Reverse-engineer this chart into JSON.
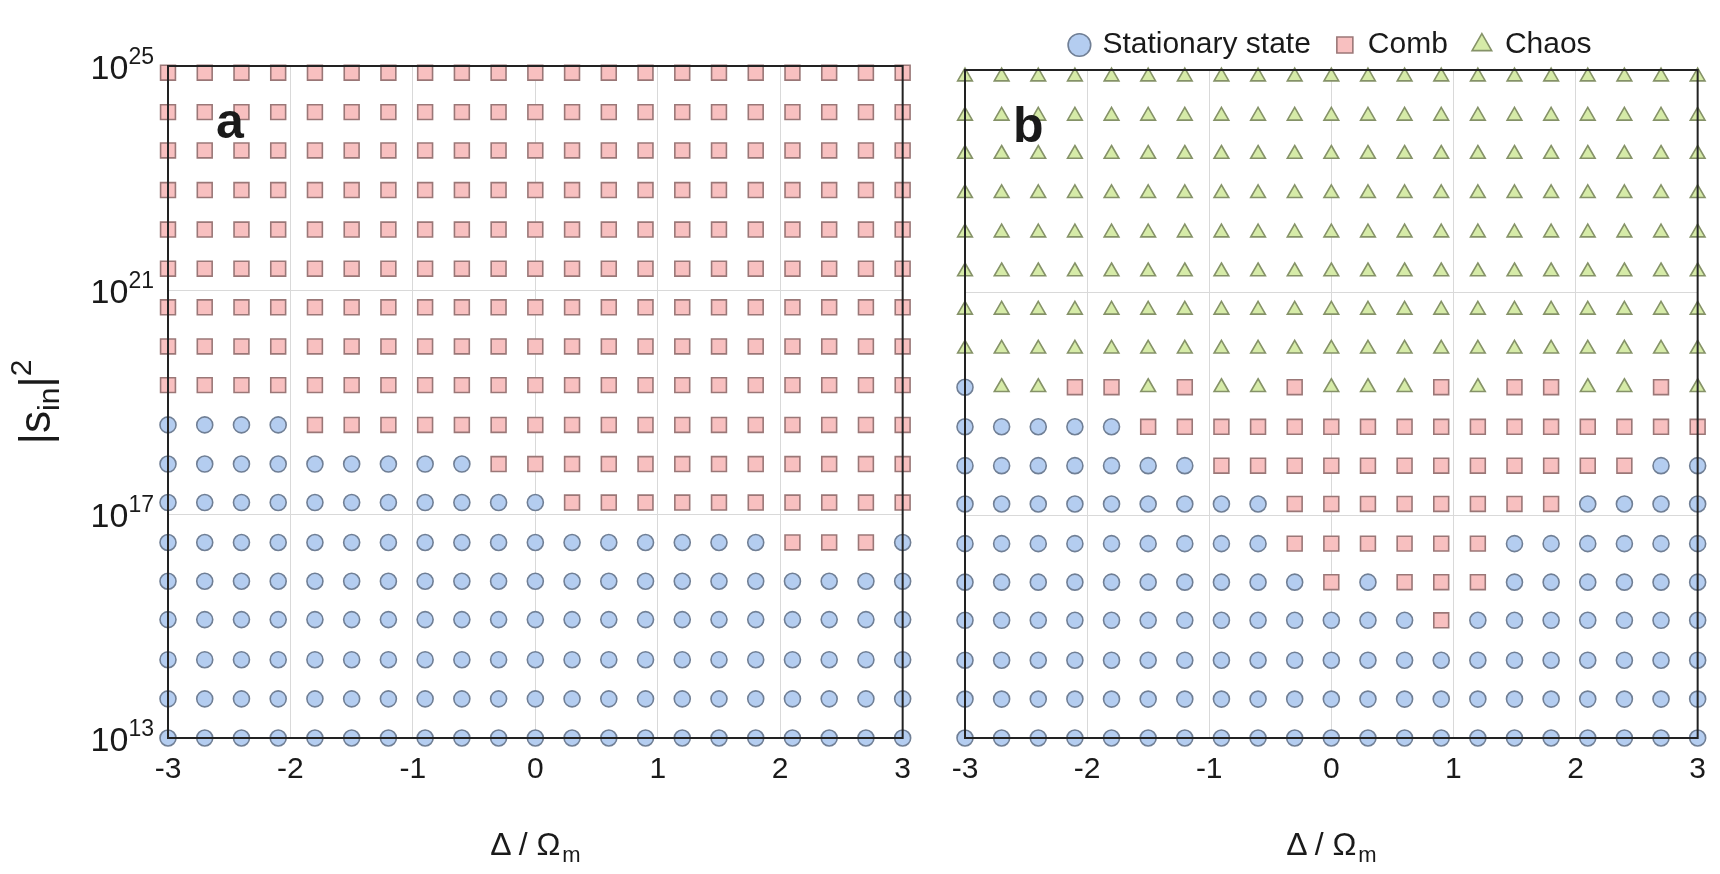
{
  "chart_data": [
    {
      "type": "scatter",
      "xlabel": "Δ / Ω$_{m}$",
      "ylabel": "|s$_{in}$|$^{2}$",
      "annotations": [
        "a"
      ],
      "log": "y",
      "grid": true,
      "legend": false,
      "xlim": [
        -3,
        3
      ],
      "xticks": [
        -3,
        -2,
        -1,
        0,
        1,
        2,
        3
      ],
      "ylim": [
        10000000000000.0,
        1e+25
      ],
      "yticks": [
        {
          "value": 10000000000000.0,
          "label": "10$^{13}$"
        },
        {
          "value": 1e+17,
          "label": "10$^{17}$"
        },
        {
          "value": 1e+21,
          "label": "10$^{21}$"
        },
        {
          "value": 1e+25,
          "label": "10$^{25}$"
        }
      ],
      "series": [
        {
          "color": "#b4cdf0",
          "marker": "circle",
          "x": [
            -3,
            -2.7,
            -2.4,
            -2.1,
            -1.8,
            -1.5,
            -1.2,
            -0.9,
            -0.6,
            -0.3,
            0,
            0.3,
            0.6,
            0.9,
            1.2,
            1.5,
            1.8,
            2.1,
            2.4,
            2.7,
            3,
            -3,
            -2.7,
            -2.4,
            -2.1,
            -1.8,
            -1.5,
            -1.2,
            -0.9,
            -0.6,
            -0.3,
            0,
            0.3,
            0.6,
            0.9,
            1.2,
            1.5,
            1.8,
            2.1,
            2.4,
            2.7,
            3,
            -3,
            -2.7,
            -2.4,
            -2.1,
            -1.8,
            -1.5,
            -1.2,
            -0.9,
            -0.6,
            -0.3,
            0,
            0.3,
            0.6,
            0.9,
            1.2,
            1.5,
            1.8,
            2.1,
            2.4,
            2.7,
            3,
            -3,
            -2.7,
            -2.4,
            -2.1,
            -1.8,
            -1.5,
            -1.2,
            -0.9,
            -0.6,
            -0.3,
            0,
            0.3,
            0.6,
            0.9,
            1.2,
            1.5,
            1.8,
            2.1,
            2.4,
            2.7,
            3,
            -3,
            -2.7,
            -2.4,
            -2.1,
            -1.8,
            -1.5,
            -1.2,
            -0.9,
            -0.6,
            -0.3,
            0,
            0.3,
            0.6,
            0.9,
            1.2,
            1.5,
            1.8,
            2.1,
            2.4,
            2.7,
            3,
            -3,
            -2.7,
            -2.4,
            -2.1,
            -1.8,
            -1.5,
            -1.2,
            -0.9,
            -0.6,
            -0.3,
            0,
            0.3,
            0.6,
            0.9,
            1.2,
            1.5,
            1.8,
            3,
            -3,
            -2.7,
            -2.4,
            -2.1,
            -1.8,
            -1.5,
            -1.2,
            -0.9,
            -0.6,
            -0.3,
            0,
            -3,
            -2.7,
            -2.4,
            -2.1,
            -1.8,
            -1.5,
            -1.2,
            -0.9,
            -0.6,
            -3,
            -2.7,
            -2.4,
            -2.1
          ],
          "values": [
            10000000000000.0,
            10000000000000.0,
            10000000000000.0,
            10000000000000.0,
            10000000000000.0,
            10000000000000.0,
            10000000000000.0,
            10000000000000.0,
            10000000000000.0,
            10000000000000.0,
            10000000000000.0,
            10000000000000.0,
            10000000000000.0,
            10000000000000.0,
            10000000000000.0,
            10000000000000.0,
            10000000000000.0,
            10000000000000.0,
            10000000000000.0,
            10000000000000.0,
            10000000000000.0,
            50000000000000.0,
            50000000000000.0,
            50000000000000.0,
            50000000000000.0,
            50000000000000.0,
            50000000000000.0,
            50000000000000.0,
            50000000000000.0,
            50000000000000.0,
            50000000000000.0,
            50000000000000.0,
            50000000000000.0,
            50000000000000.0,
            50000000000000.0,
            50000000000000.0,
            50000000000000.0,
            50000000000000.0,
            50000000000000.0,
            50000000000000.0,
            50000000000000.0,
            50000000000000.0,
            250000000000000.0,
            250000000000000.0,
            250000000000000.0,
            250000000000000.0,
            250000000000000.0,
            250000000000000.0,
            250000000000000.0,
            250000000000000.0,
            250000000000000.0,
            250000000000000.0,
            250000000000000.0,
            250000000000000.0,
            250000000000000.0,
            250000000000000.0,
            250000000000000.0,
            250000000000000.0,
            250000000000000.0,
            250000000000000.0,
            250000000000000.0,
            250000000000000.0,
            250000000000000.0,
            1300000000000000.0,
            1300000000000000.0,
            1300000000000000.0,
            1300000000000000.0,
            1300000000000000.0,
            1300000000000000.0,
            1300000000000000.0,
            1300000000000000.0,
            1300000000000000.0,
            1300000000000000.0,
            1300000000000000.0,
            1300000000000000.0,
            1300000000000000.0,
            1300000000000000.0,
            1300000000000000.0,
            1300000000000000.0,
            1300000000000000.0,
            1300000000000000.0,
            1300000000000000.0,
            1300000000000000.0,
            1300000000000000.0,
            6300000000000000.0,
            6300000000000000.0,
            6300000000000000.0,
            6300000000000000.0,
            6300000000000000.0,
            6300000000000000.0,
            6300000000000000.0,
            6300000000000000.0,
            6300000000000000.0,
            6300000000000000.0,
            6300000000000000.0,
            6300000000000000.0,
            6300000000000000.0,
            6300000000000000.0,
            6300000000000000.0,
            6300000000000000.0,
            6300000000000000.0,
            6300000000000000.0,
            6300000000000000.0,
            6300000000000000.0,
            6300000000000000.0,
            3.1e+16,
            3.1e+16,
            3.1e+16,
            3.1e+16,
            3.1e+16,
            3.1e+16,
            3.1e+16,
            3.1e+16,
            3.1e+16,
            3.1e+16,
            3.1e+16,
            3.1e+16,
            3.1e+16,
            3.1e+16,
            3.1e+16,
            3.1e+16,
            3.1e+16,
            3.1e+16,
            1.6e+17,
            1.6e+17,
            1.6e+17,
            1.6e+17,
            1.6e+17,
            1.6e+17,
            1.6e+17,
            1.6e+17,
            1.6e+17,
            1.6e+17,
            1.6e+17,
            7.8e+17,
            7.8e+17,
            7.8e+17,
            7.8e+17,
            7.8e+17,
            7.8e+17,
            7.8e+17,
            7.8e+17,
            7.8e+17,
            3.9e+18,
            3.9e+18,
            3.9e+18,
            3.9e+18
          ]
        },
        {
          "color": "#f8c0c0",
          "marker": "square",
          "x": [
            2.1,
            2.4,
            2.7,
            0.3,
            0.6,
            0.9,
            1.2,
            1.5,
            1.8,
            2.1,
            2.4,
            2.7,
            3,
            -0.3,
            0,
            0.3,
            0.6,
            0.9,
            1.2,
            1.5,
            1.8,
            2.1,
            2.4,
            2.7,
            3,
            -1.8,
            -1.5,
            -1.2,
            -0.9,
            -0.6,
            -0.3,
            0,
            0.3,
            0.6,
            0.9,
            1.2,
            1.5,
            1.8,
            2.1,
            2.4,
            2.7,
            3,
            -3,
            -2.7,
            -2.4,
            -2.1,
            -1.8,
            -1.5,
            -1.2,
            -0.9,
            -0.6,
            -0.3,
            0,
            0.3,
            0.6,
            0.9,
            1.2,
            1.5,
            1.8,
            2.1,
            2.4,
            2.7,
            3,
            -3,
            -2.7,
            -2.4,
            -2.1,
            -1.8,
            -1.5,
            -1.2,
            -0.9,
            -0.6,
            -0.3,
            0,
            0.3,
            0.6,
            0.9,
            1.2,
            1.5,
            1.8,
            2.1,
            2.4,
            2.7,
            3,
            -3,
            -2.7,
            -2.4,
            -2.1,
            -1.8,
            -1.5,
            -1.2,
            -0.9,
            -0.6,
            -0.3,
            0,
            0.3,
            0.6,
            0.9,
            1.2,
            1.5,
            1.8,
            2.1,
            2.4,
            2.7,
            3,
            -3,
            -2.7,
            -2.4,
            -2.1,
            -1.8,
            -1.5,
            -1.2,
            -0.9,
            -0.6,
            -0.3,
            0,
            0.3,
            0.6,
            0.9,
            1.2,
            1.5,
            1.8,
            2.1,
            2.4,
            2.7,
            3,
            -3,
            -2.7,
            -2.4,
            -2.1,
            -1.8,
            -1.5,
            -1.2,
            -0.9,
            -0.6,
            -0.3,
            0,
            0.3,
            0.6,
            0.9,
            1.2,
            1.5,
            1.8,
            2.1,
            2.4,
            2.7,
            3,
            -3,
            -2.7,
            -2.4,
            -2.1,
            -1.8,
            -1.5,
            -1.2,
            -0.9,
            -0.6,
            -0.3,
            0,
            0.3,
            0.6,
            0.9,
            1.2,
            1.5,
            1.8,
            2.1,
            2.4,
            2.7,
            3,
            -3,
            -2.7,
            -2.4,
            -2.1,
            -1.8,
            -1.5,
            -1.2,
            -0.9,
            -0.6,
            -0.3,
            0,
            0.3,
            0.6,
            0.9,
            1.2,
            1.5,
            1.8,
            2.1,
            2.4,
            2.7,
            3,
            -3,
            -2.7,
            -2.4,
            -2.1,
            -1.8,
            -1.5,
            -1.2,
            -0.9,
            -0.6,
            -0.3,
            0,
            0.3,
            0.6,
            0.9,
            1.2,
            1.5,
            1.8,
            2.1,
            2.4,
            2.7,
            3,
            -3,
            -2.7,
            -2.4,
            -2.1,
            -1.8,
            -1.5,
            -1.2,
            -0.9,
            -0.6,
            -0.3,
            0,
            0.3,
            0.6,
            0.9,
            1.2,
            1.5,
            1.8,
            2.1,
            2.4,
            2.7,
            3
          ],
          "values": [
            3.1e+16,
            3.1e+16,
            3.1e+16,
            1.6e+17,
            1.6e+17,
            1.6e+17,
            1.6e+17,
            1.6e+17,
            1.6e+17,
            1.6e+17,
            1.6e+17,
            1.6e+17,
            1.6e+17,
            7.8e+17,
            7.8e+17,
            7.8e+17,
            7.8e+17,
            7.8e+17,
            7.8e+17,
            7.8e+17,
            7.8e+17,
            7.8e+17,
            7.8e+17,
            7.8e+17,
            7.8e+17,
            3.9e+18,
            3.9e+18,
            3.9e+18,
            3.9e+18,
            3.9e+18,
            3.9e+18,
            3.9e+18,
            3.9e+18,
            3.9e+18,
            3.9e+18,
            3.9e+18,
            3.9e+18,
            3.9e+18,
            3.9e+18,
            3.9e+18,
            3.9e+18,
            3.9e+18,
            2e+19,
            2e+19,
            2e+19,
            2e+19,
            2e+19,
            2e+19,
            2e+19,
            2e+19,
            2e+19,
            2e+19,
            2e+19,
            2e+19,
            2e+19,
            2e+19,
            2e+19,
            2e+19,
            2e+19,
            2e+19,
            2e+19,
            2e+19,
            2e+19,
            9.8e+19,
            9.8e+19,
            9.8e+19,
            9.8e+19,
            9.8e+19,
            9.8e+19,
            9.8e+19,
            9.8e+19,
            9.8e+19,
            9.8e+19,
            9.8e+19,
            9.8e+19,
            9.8e+19,
            9.8e+19,
            9.8e+19,
            9.8e+19,
            9.8e+19,
            9.8e+19,
            9.8e+19,
            9.8e+19,
            9.8e+19,
            4.9e+20,
            4.9e+20,
            4.9e+20,
            4.9e+20,
            4.9e+20,
            4.9e+20,
            4.9e+20,
            4.9e+20,
            4.9e+20,
            4.9e+20,
            4.9e+20,
            4.9e+20,
            4.9e+20,
            4.9e+20,
            4.9e+20,
            4.9e+20,
            4.9e+20,
            4.9e+20,
            4.9e+20,
            4.9e+20,
            4.9e+20,
            2.4e+21,
            2.4e+21,
            2.4e+21,
            2.4e+21,
            2.4e+21,
            2.4e+21,
            2.4e+21,
            2.4e+21,
            2.4e+21,
            2.4e+21,
            2.4e+21,
            2.4e+21,
            2.4e+21,
            2.4e+21,
            2.4e+21,
            2.4e+21,
            2.4e+21,
            2.4e+21,
            2.4e+21,
            2.4e+21,
            2.4e+21,
            1.2e+22,
            1.2e+22,
            1.2e+22,
            1.2e+22,
            1.2e+22,
            1.2e+22,
            1.2e+22,
            1.2e+22,
            1.2e+22,
            1.2e+22,
            1.2e+22,
            1.2e+22,
            1.2e+22,
            1.2e+22,
            1.2e+22,
            1.2e+22,
            1.2e+22,
            1.2e+22,
            1.2e+22,
            1.2e+22,
            1.2e+22,
            6.1e+22,
            6.1e+22,
            6.1e+22,
            6.1e+22,
            6.1e+22,
            6.1e+22,
            6.1e+22,
            6.1e+22,
            6.1e+22,
            6.1e+22,
            6.1e+22,
            6.1e+22,
            6.1e+22,
            6.1e+22,
            6.1e+22,
            6.1e+22,
            6.1e+22,
            6.1e+22,
            6.1e+22,
            6.1e+22,
            6.1e+22,
            3.1e+23,
            3.1e+23,
            3.1e+23,
            3.1e+23,
            3.1e+23,
            3.1e+23,
            3.1e+23,
            3.1e+23,
            3.1e+23,
            3.1e+23,
            3.1e+23,
            3.1e+23,
            3.1e+23,
            3.1e+23,
            3.1e+23,
            3.1e+23,
            3.1e+23,
            3.1e+23,
            3.1e+23,
            3.1e+23,
            3.1e+23,
            1.5e+24,
            1.5e+24,
            1.5e+24,
            1.5e+24,
            1.5e+24,
            1.5e+24,
            1.5e+24,
            1.5e+24,
            1.5e+24,
            1.5e+24,
            1.5e+24,
            1.5e+24,
            1.5e+24,
            1.5e+24,
            1.5e+24,
            1.5e+24,
            1.5e+24,
            1.5e+24,
            1.5e+24,
            1.5e+24,
            1.5e+24,
            7.6e+24,
            7.6e+24,
            7.6e+24,
            7.6e+24,
            7.6e+24,
            7.6e+24,
            7.6e+24,
            7.6e+24,
            7.6e+24,
            7.6e+24,
            7.6e+24,
            7.6e+24,
            7.6e+24,
            7.6e+24,
            7.6e+24,
            7.6e+24,
            7.6e+24,
            7.6e+24,
            7.6e+24,
            7.6e+24,
            7.6e+24
          ]
        }
      ]
    },
    {
      "type": "scatter",
      "xlabel": "Δ / Ω$_{m}$",
      "annotations": [
        "b"
      ],
      "log": "y",
      "grid": true,
      "legend": "top",
      "tick_labels": "x",
      "xlim": [
        -3,
        3
      ],
      "xticks": [
        -3,
        -2,
        -1,
        0,
        1,
        2,
        3
      ],
      "ylim": [
        10000000000000.0,
        1e+25
      ],
      "yticks": [
        {
          "value": 10000000000000.0,
          "label": null
        },
        {
          "value": 1e+17,
          "label": null
        },
        {
          "value": 1e+21,
          "label": null
        },
        {
          "value": 1e+25,
          "label": null
        }
      ],
      "series": [
        {
          "name": "Stationary state",
          "color": "#b4cdf0",
          "marker": "circle",
          "x": [
            -3,
            -2.7,
            -2.4,
            -2.1,
            -1.8,
            -1.5,
            -1.2,
            -0.9,
            -0.6,
            -0.3,
            0,
            0.3,
            0.6,
            0.9,
            1.2,
            1.5,
            1.8,
            2.1,
            2.4,
            2.7,
            3,
            -3,
            -2.7,
            -2.4,
            -2.1,
            -1.8,
            -1.5,
            -1.2,
            -0.9,
            -0.6,
            -0.3,
            0,
            0.3,
            0.6,
            0.9,
            1.2,
            1.5,
            1.8,
            2.1,
            2.4,
            2.7,
            3,
            -3,
            -2.7,
            -2.4,
            -2.1,
            -1.8,
            -1.5,
            -1.2,
            -0.9,
            -0.6,
            -0.3,
            0,
            0.3,
            0.6,
            0.9,
            1.2,
            1.5,
            1.8,
            2.1,
            2.4,
            2.7,
            3,
            -3,
            -2.7,
            -2.4,
            -2.1,
            -1.8,
            -1.5,
            -1.2,
            -0.9,
            -0.6,
            -0.3,
            0,
            0.3,
            0.6,
            1.2,
            1.5,
            1.8,
            2.1,
            2.4,
            2.7,
            3,
            -3,
            -2.7,
            -2.4,
            -2.1,
            -1.8,
            -1.5,
            -1.2,
            -0.9,
            -0.6,
            -0.3,
            0.3,
            1.5,
            1.8,
            2.1,
            2.4,
            2.7,
            3,
            -3,
            -2.7,
            -2.4,
            -2.1,
            -1.8,
            -1.5,
            -1.2,
            -0.9,
            -0.6,
            1.5,
            1.8,
            2.1,
            2.4,
            2.7,
            3,
            -3,
            -2.7,
            -2.4,
            -2.1,
            -1.8,
            -1.5,
            -1.2,
            -0.9,
            -0.6,
            2.1,
            2.4,
            2.7,
            3,
            -3,
            -2.7,
            -2.4,
            -2.1,
            -1.8,
            -1.5,
            -1.2,
            2.7,
            3,
            -3,
            -2.7,
            -2.4,
            -2.1,
            -1.8,
            -3
          ],
          "values": [
            10000000000000.0,
            10000000000000.0,
            10000000000000.0,
            10000000000000.0,
            10000000000000.0,
            10000000000000.0,
            10000000000000.0,
            10000000000000.0,
            10000000000000.0,
            10000000000000.0,
            10000000000000.0,
            10000000000000.0,
            10000000000000.0,
            10000000000000.0,
            10000000000000.0,
            10000000000000.0,
            10000000000000.0,
            10000000000000.0,
            10000000000000.0,
            10000000000000.0,
            10000000000000.0,
            50000000000000.0,
            50000000000000.0,
            50000000000000.0,
            50000000000000.0,
            50000000000000.0,
            50000000000000.0,
            50000000000000.0,
            50000000000000.0,
            50000000000000.0,
            50000000000000.0,
            50000000000000.0,
            50000000000000.0,
            50000000000000.0,
            50000000000000.0,
            50000000000000.0,
            50000000000000.0,
            50000000000000.0,
            50000000000000.0,
            50000000000000.0,
            50000000000000.0,
            50000000000000.0,
            250000000000000.0,
            250000000000000.0,
            250000000000000.0,
            250000000000000.0,
            250000000000000.0,
            250000000000000.0,
            250000000000000.0,
            250000000000000.0,
            250000000000000.0,
            250000000000000.0,
            250000000000000.0,
            250000000000000.0,
            250000000000000.0,
            250000000000000.0,
            250000000000000.0,
            250000000000000.0,
            250000000000000.0,
            250000000000000.0,
            250000000000000.0,
            250000000000000.0,
            250000000000000.0,
            1300000000000000.0,
            1300000000000000.0,
            1300000000000000.0,
            1300000000000000.0,
            1300000000000000.0,
            1300000000000000.0,
            1300000000000000.0,
            1300000000000000.0,
            1300000000000000.0,
            1300000000000000.0,
            1300000000000000.0,
            1300000000000000.0,
            1300000000000000.0,
            1300000000000000.0,
            1300000000000000.0,
            1300000000000000.0,
            1300000000000000.0,
            1300000000000000.0,
            1300000000000000.0,
            1300000000000000.0,
            6300000000000000.0,
            6300000000000000.0,
            6300000000000000.0,
            6300000000000000.0,
            6300000000000000.0,
            6300000000000000.0,
            6300000000000000.0,
            6300000000000000.0,
            6300000000000000.0,
            6300000000000000.0,
            6300000000000000.0,
            6300000000000000.0,
            6300000000000000.0,
            6300000000000000.0,
            6300000000000000.0,
            6300000000000000.0,
            6300000000000000.0,
            3.1e+16,
            3.1e+16,
            3.1e+16,
            3.1e+16,
            3.1e+16,
            3.1e+16,
            3.1e+16,
            3.1e+16,
            3.1e+16,
            3.1e+16,
            3.1e+16,
            3.1e+16,
            3.1e+16,
            3.1e+16,
            3.1e+16,
            1.6e+17,
            1.6e+17,
            1.6e+17,
            1.6e+17,
            1.6e+17,
            1.6e+17,
            1.6e+17,
            1.6e+17,
            1.6e+17,
            1.6e+17,
            1.6e+17,
            1.6e+17,
            1.6e+17,
            7.8e+17,
            7.8e+17,
            7.8e+17,
            7.8e+17,
            7.8e+17,
            7.8e+17,
            7.8e+17,
            7.8e+17,
            7.8e+17,
            3.9e+18,
            3.9e+18,
            3.9e+18,
            3.9e+18,
            3.9e+18,
            2e+19
          ]
        },
        {
          "name": "Comb",
          "color": "#f8c0c0",
          "marker": "square",
          "x": [
            0.9,
            0,
            0.6,
            0.9,
            1.2,
            -0.3,
            0,
            0.3,
            0.6,
            0.9,
            1.2,
            -0.3,
            0,
            0.3,
            0.6,
            0.9,
            1.2,
            1.5,
            1.8,
            -0.9,
            -0.6,
            -0.3,
            0,
            0.3,
            0.6,
            0.9,
            1.2,
            1.5,
            1.8,
            2.1,
            2.4,
            -1.5,
            -1.2,
            -0.9,
            -0.6,
            -0.3,
            0,
            0.3,
            0.6,
            0.9,
            1.2,
            1.5,
            1.8,
            2.1,
            2.4,
            2.7,
            3,
            -2.1,
            -1.8,
            -1.2,
            -0.3,
            0.9,
            1.5,
            1.8,
            2.7
          ],
          "values": [
            1300000000000000.0,
            6300000000000000.0,
            6300000000000000.0,
            6300000000000000.0,
            6300000000000000.0,
            3.1e+16,
            3.1e+16,
            3.1e+16,
            3.1e+16,
            3.1e+16,
            3.1e+16,
            1.6e+17,
            1.6e+17,
            1.6e+17,
            1.6e+17,
            1.6e+17,
            1.6e+17,
            1.6e+17,
            1.6e+17,
            7.8e+17,
            7.8e+17,
            7.8e+17,
            7.8e+17,
            7.8e+17,
            7.8e+17,
            7.8e+17,
            7.8e+17,
            7.8e+17,
            7.8e+17,
            7.8e+17,
            7.8e+17,
            3.9e+18,
            3.9e+18,
            3.9e+18,
            3.9e+18,
            3.9e+18,
            3.9e+18,
            3.9e+18,
            3.9e+18,
            3.9e+18,
            3.9e+18,
            3.9e+18,
            3.9e+18,
            3.9e+18,
            3.9e+18,
            3.9e+18,
            3.9e+18,
            2e+19,
            2e+19,
            2e+19,
            2e+19,
            2e+19,
            2e+19,
            2e+19,
            2e+19
          ]
        },
        {
          "name": "Chaos",
          "color": "#d6eba8",
          "marker": "triangle",
          "x": [
            -2.7,
            -2.4,
            -1.5,
            -0.9,
            -0.6,
            0,
            0.3,
            0.6,
            1.2,
            2.1,
            2.4,
            3,
            -3,
            -2.7,
            -2.4,
            -2.1,
            -1.8,
            -1.5,
            -1.2,
            -0.9,
            -0.6,
            -0.3,
            0,
            0.3,
            0.6,
            0.9,
            1.2,
            1.5,
            1.8,
            2.1,
            2.4,
            2.7,
            3,
            -3,
            -2.7,
            -2.4,
            -2.1,
            -1.8,
            -1.5,
            -1.2,
            -0.9,
            -0.6,
            -0.3,
            0,
            0.3,
            0.6,
            0.9,
            1.2,
            1.5,
            1.8,
            2.1,
            2.4,
            2.7,
            3,
            -3,
            -2.7,
            -2.4,
            -2.1,
            -1.8,
            -1.5,
            -1.2,
            -0.9,
            -0.6,
            -0.3,
            0,
            0.3,
            0.6,
            0.9,
            1.2,
            1.5,
            1.8,
            2.1,
            2.4,
            2.7,
            3,
            -3,
            -2.7,
            -2.4,
            -2.1,
            -1.8,
            -1.5,
            -1.2,
            -0.9,
            -0.6,
            -0.3,
            0,
            0.3,
            0.6,
            0.9,
            1.2,
            1.5,
            1.8,
            2.1,
            2.4,
            2.7,
            3,
            -3,
            -2.7,
            -2.4,
            -2.1,
            -1.8,
            -1.5,
            -1.2,
            -0.9,
            -0.6,
            -0.3,
            0,
            0.3,
            0.6,
            0.9,
            1.2,
            1.5,
            1.8,
            2.1,
            2.4,
            2.7,
            3,
            -3,
            -2.7,
            -2.4,
            -2.1,
            -1.8,
            -1.5,
            -1.2,
            -0.9,
            -0.6,
            -0.3,
            0,
            0.3,
            0.6,
            0.9,
            1.2,
            1.5,
            1.8,
            2.1,
            2.4,
            2.7,
            3,
            -3,
            -2.7,
            -2.4,
            -2.1,
            -1.8,
            -1.5,
            -1.2,
            -0.9,
            -0.6,
            -0.3,
            0,
            0.3,
            0.6,
            0.9,
            1.2,
            1.5,
            1.8,
            2.1,
            2.4,
            2.7,
            3,
            -3,
            -2.7,
            -2.4,
            -2.1,
            -1.8,
            -1.5,
            -1.2,
            -0.9,
            -0.6,
            -0.3,
            0,
            0.3,
            0.6,
            0.9,
            1.2,
            1.5,
            1.8,
            2.1,
            2.4,
            2.7,
            3
          ],
          "values": [
            2e+19,
            2e+19,
            2e+19,
            2e+19,
            2e+19,
            2e+19,
            2e+19,
            2e+19,
            2e+19,
            2e+19,
            2e+19,
            2e+19,
            9.8e+19,
            9.8e+19,
            9.8e+19,
            9.8e+19,
            9.8e+19,
            9.8e+19,
            9.8e+19,
            9.8e+19,
            9.8e+19,
            9.8e+19,
            9.8e+19,
            9.8e+19,
            9.8e+19,
            9.8e+19,
            9.8e+19,
            9.8e+19,
            9.8e+19,
            9.8e+19,
            9.8e+19,
            9.8e+19,
            9.8e+19,
            4.9e+20,
            4.9e+20,
            4.9e+20,
            4.9e+20,
            4.9e+20,
            4.9e+20,
            4.9e+20,
            4.9e+20,
            4.9e+20,
            4.9e+20,
            4.9e+20,
            4.9e+20,
            4.9e+20,
            4.9e+20,
            4.9e+20,
            4.9e+20,
            4.9e+20,
            4.9e+20,
            4.9e+20,
            4.9e+20,
            4.9e+20,
            2.4e+21,
            2.4e+21,
            2.4e+21,
            2.4e+21,
            2.4e+21,
            2.4e+21,
            2.4e+21,
            2.4e+21,
            2.4e+21,
            2.4e+21,
            2.4e+21,
            2.4e+21,
            2.4e+21,
            2.4e+21,
            2.4e+21,
            2.4e+21,
            2.4e+21,
            2.4e+21,
            2.4e+21,
            2.4e+21,
            2.4e+21,
            1.2e+22,
            1.2e+22,
            1.2e+22,
            1.2e+22,
            1.2e+22,
            1.2e+22,
            1.2e+22,
            1.2e+22,
            1.2e+22,
            1.2e+22,
            1.2e+22,
            1.2e+22,
            1.2e+22,
            1.2e+22,
            1.2e+22,
            1.2e+22,
            1.2e+22,
            1.2e+22,
            1.2e+22,
            1.2e+22,
            1.2e+22,
            6.1e+22,
            6.1e+22,
            6.1e+22,
            6.1e+22,
            6.1e+22,
            6.1e+22,
            6.1e+22,
            6.1e+22,
            6.1e+22,
            6.1e+22,
            6.1e+22,
            6.1e+22,
            6.1e+22,
            6.1e+22,
            6.1e+22,
            6.1e+22,
            6.1e+22,
            6.1e+22,
            6.1e+22,
            6.1e+22,
            6.1e+22,
            3.1e+23,
            3.1e+23,
            3.1e+23,
            3.1e+23,
            3.1e+23,
            3.1e+23,
            3.1e+23,
            3.1e+23,
            3.1e+23,
            3.1e+23,
            3.1e+23,
            3.1e+23,
            3.1e+23,
            3.1e+23,
            3.1e+23,
            3.1e+23,
            3.1e+23,
            3.1e+23,
            3.1e+23,
            3.1e+23,
            3.1e+23,
            1.5e+24,
            1.5e+24,
            1.5e+24,
            1.5e+24,
            1.5e+24,
            1.5e+24,
            1.5e+24,
            1.5e+24,
            1.5e+24,
            1.5e+24,
            1.5e+24,
            1.5e+24,
            1.5e+24,
            1.5e+24,
            1.5e+24,
            1.5e+24,
            1.5e+24,
            1.5e+24,
            1.5e+24,
            1.5e+24,
            1.5e+24,
            7.6e+24,
            7.6e+24,
            7.6e+24,
            7.6e+24,
            7.6e+24,
            7.6e+24,
            7.6e+24,
            7.6e+24,
            7.6e+24,
            7.6e+24,
            7.6e+24,
            7.6e+24,
            7.6e+24,
            7.6e+24,
            7.6e+24,
            7.6e+24,
            7.6e+24,
            7.6e+24,
            7.6e+24,
            7.6e+24,
            7.6e+24
          ]
        }
      ]
    }
  ]
}
